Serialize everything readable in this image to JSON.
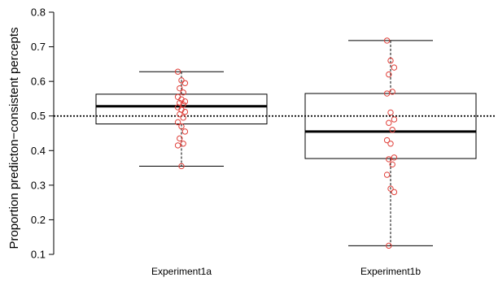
{
  "chart_data": {
    "type": "boxplot",
    "title": "",
    "xlabel": "",
    "ylabel": "Proportion predicton−consistent percepts",
    "ylim": [
      0.1,
      0.8
    ],
    "yticks": [
      0.1,
      0.2,
      0.3,
      0.4,
      0.5,
      0.6,
      0.7,
      0.8
    ],
    "reference_line": {
      "y": 0.5,
      "style": "dotted"
    },
    "grid": false,
    "colors": {
      "box": "#000000",
      "points": "#e0403a"
    },
    "categories": [
      "Experiment1a",
      "Experiment1b"
    ],
    "boxes": [
      {
        "whisker_low": 0.355,
        "q1": 0.477,
        "median": 0.528,
        "q3": 0.563,
        "whisker_high": 0.628
      },
      {
        "whisker_low": 0.125,
        "q1": 0.377,
        "median": 0.455,
        "q3": 0.565,
        "whisker_high": 0.718
      }
    ],
    "points": [
      [
        0.628,
        0.603,
        0.595,
        0.58,
        0.568,
        0.555,
        0.548,
        0.542,
        0.538,
        0.533,
        0.525,
        0.518,
        0.512,
        0.505,
        0.495,
        0.482,
        0.47,
        0.455,
        0.435,
        0.42,
        0.415,
        0.355
      ],
      [
        0.718,
        0.66,
        0.64,
        0.62,
        0.57,
        0.565,
        0.51,
        0.49,
        0.48,
        0.46,
        0.43,
        0.42,
        0.38,
        0.375,
        0.36,
        0.33,
        0.29,
        0.28,
        0.125
      ]
    ]
  }
}
